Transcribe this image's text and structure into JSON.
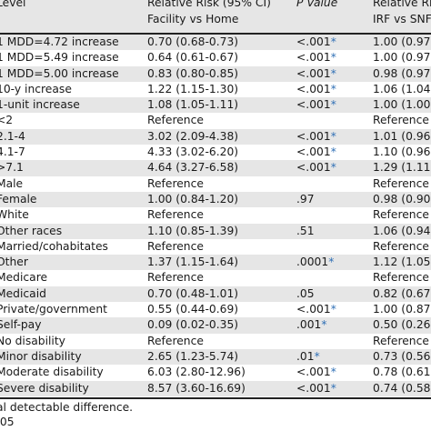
{
  "header": {
    "col_level": "Level",
    "col_rr1_line1": "Relative Risk (95% CI)",
    "col_rr1_line2": "Facility vs Home",
    "col_p": "P Value",
    "col_rr2_line1": "Relative Ri",
    "col_rr2_line2": "IRF vs SNF"
  },
  "rows": [
    {
      "level": "1 MDD=4.72 increase",
      "rr": "0.70 (0.68-0.73)",
      "p": "<.001",
      "star": "*",
      "rr2": "1.00 (0.97-",
      "shade": true
    },
    {
      "level": "1 MDD=5.49 increase",
      "rr": "0.64 (0.61-0.67)",
      "p": "<.001",
      "star": "*",
      "rr2": "1.00 (0.97-",
      "shade": false
    },
    {
      "level": "1 MDD=5.00 increase",
      "rr": "0.83 (0.80-0.85)",
      "p": "<.001",
      "star": "*",
      "rr2": "0.98 (0.97-",
      "shade": true
    },
    {
      "level": "10-y increase",
      "rr": "1.22 (1.15-1.30)",
      "p": "<.001",
      "star": "*",
      "rr2": "1.06 (1.04-",
      "shade": false
    },
    {
      "level": "1-unit increase",
      "rr": "1.08 (1.05-1.11)",
      "p": "<.001",
      "star": "*",
      "rr2": "1.00 (1.00-",
      "shade": true
    },
    {
      "level": "<2",
      "rr": "Reference",
      "p": "",
      "star": "",
      "rr2": "Reference",
      "shade": false
    },
    {
      "level": "2.1-4",
      "rr": "3.02 (2.09-4.38)",
      "p": "<.001",
      "star": "*",
      "rr2": "1.01 (0.96-",
      "shade": true
    },
    {
      "level": "4.1-7",
      "rr": "4.33 (3.02-6.20)",
      "p": "<.001",
      "star": "*",
      "rr2": "1.10 (0.96-",
      "shade": false
    },
    {
      "level": ">7.1",
      "rr": "4.64 (3.27-6.58)",
      "p": "<.001",
      "star": "*",
      "rr2": "1.29 (1.11-",
      "shade": true
    },
    {
      "level": "Male",
      "rr": "Reference",
      "p": "",
      "star": "",
      "rr2": "Reference",
      "shade": false
    },
    {
      "level": "Female",
      "rr": "1.00 (0.84-1.20)",
      "p": ".97",
      "star": "",
      "rr2": "0.98 (0.90-",
      "shade": true
    },
    {
      "level": "White",
      "rr": "Reference",
      "p": "",
      "star": "",
      "rr2": "Reference",
      "shade": false
    },
    {
      "level": "Other races",
      "rr": "1.10 (0.85-1.39)",
      "p": ".51",
      "star": "",
      "rr2": "1.06 (0.94-",
      "shade": true
    },
    {
      "level": "Married/cohabitates",
      "rr": "Reference",
      "p": "",
      "star": "",
      "rr2": "Reference",
      "shade": false
    },
    {
      "level": "Other",
      "rr": "1.37 (1.15-1.64)",
      "p": ".0001",
      "star": "*",
      "rr2": "1.12 (1.05-",
      "shade": true
    },
    {
      "level": "Medicare",
      "rr": "Reference",
      "p": "",
      "star": "",
      "rr2": "Reference",
      "shade": false
    },
    {
      "level": "Medicaid",
      "rr": "0.70 (0.48-1.01)",
      "p": ".05",
      "star": "",
      "rr2": "0.82 (0.67-",
      "shade": true
    },
    {
      "level": "Private/government",
      "rr": "0.55 (0.44-0.69)",
      "p": "<.001",
      "star": "*",
      "rr2": "1.00 (0.87-",
      "shade": false
    },
    {
      "level": "Self-pay",
      "rr": "0.09 (0.02-0.35)",
      "p": ".001",
      "star": "*",
      "rr2": "0.50 (0.26-",
      "shade": true
    },
    {
      "level": "No disability",
      "rr": "Reference",
      "p": "",
      "star": "",
      "rr2": "Reference",
      "shade": false
    },
    {
      "level": "Minor disability",
      "rr": "2.65 (1.23-5.74)",
      "p": ".01",
      "star": "*",
      "rr2": "0.73 (0.56-",
      "shade": true
    },
    {
      "level": "Moderate disability",
      "rr": "6.03 (2.80-12.96)",
      "p": "<.001",
      "star": "*",
      "rr2": "0.78 (0.61-",
      "shade": false
    },
    {
      "level": "Severe disability",
      "rr": "8.57 (3.60-16.69)",
      "p": "<.001",
      "star": "*",
      "rr2": "0.74 (0.58-",
      "shade": true
    }
  ],
  "footnotes": {
    "line1": "al detectable difference.",
    "line2": ".05"
  }
}
